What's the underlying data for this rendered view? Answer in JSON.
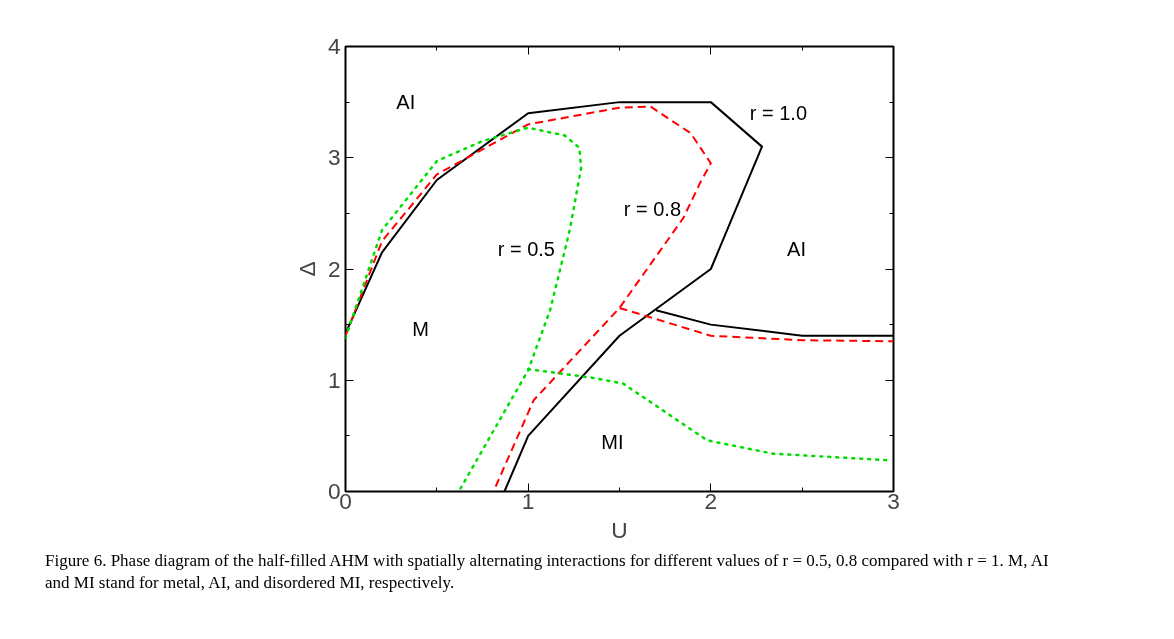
{
  "chart_data": {
    "type": "line",
    "xlabel": "U",
    "ylabel": "Δ",
    "xlim": [
      0,
      3
    ],
    "ylim": [
      0,
      4
    ],
    "xticks": [
      0,
      1,
      2,
      3
    ],
    "yticks": [
      0,
      1,
      2,
      3,
      4
    ],
    "grid": false,
    "marker": "none",
    "series": [
      {
        "name": "r = 1.0",
        "color": "#000000",
        "line_style": "solid",
        "x": [
          0,
          0.2,
          0.5,
          1.0,
          1.5,
          2.0,
          2.28,
          2.0,
          1.5,
          1.0,
          0.87,
          null,
          1.7,
          2.0,
          2.5,
          3.0
        ],
        "values": [
          1.42,
          2.15,
          2.8,
          3.4,
          3.5,
          3.5,
          3.1,
          2.0,
          1.4,
          0.5,
          0,
          null,
          1.63,
          1.5,
          1.4,
          1.4
        ]
      },
      {
        "name": "r = 0.8",
        "color": "#ff0000",
        "line_style": "dashed",
        "x": [
          0,
          0.2,
          0.5,
          1.0,
          1.5,
          1.67,
          1.89,
          2.0,
          1.94,
          1.85,
          1.5,
          1.03,
          0.81,
          null,
          1.5,
          2.0,
          2.5,
          3.0
        ],
        "values": [
          1.4,
          2.25,
          2.85,
          3.3,
          3.45,
          3.46,
          3.22,
          2.95,
          2.77,
          2.46,
          1.65,
          0.82,
          0,
          null,
          1.65,
          1.4,
          1.36,
          1.35
        ]
      },
      {
        "name": "r = 0.5",
        "color": "#00dd00",
        "line_style": "dotted",
        "x": [
          0,
          0.2,
          0.5,
          0.75,
          1.0,
          1.2,
          1.28,
          1.29,
          1.23,
          1.21,
          1.12,
          1.0,
          0.62,
          null,
          1.0,
          1.36,
          1.52,
          1.98,
          2.34,
          2.98
        ],
        "values": [
          1.38,
          2.35,
          2.97,
          3.15,
          3.27,
          3.2,
          3.09,
          2.91,
          2.37,
          2.23,
          1.63,
          1.09,
          0,
          null,
          1.1,
          1.02,
          0.97,
          0.46,
          0.34,
          0.28
        ]
      }
    ],
    "annotations": [
      "AI",
      "AI",
      "M",
      "MI",
      "Figure 6.  Phase diagram of the half-filled AHM with spatially alternating interactions for different values of r = 0.5, 0.8 compared with r = 1. M, AI and MI stand for metal, AI, and disordered MI, respectively."
    ]
  }
}
